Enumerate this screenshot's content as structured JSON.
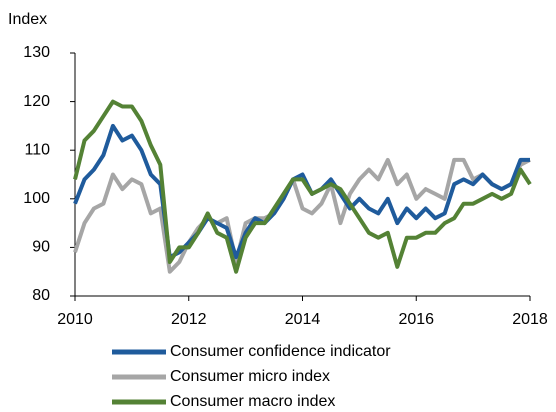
{
  "chart_data": {
    "type": "line",
    "y_label": "Index",
    "x": [
      2010,
      2010.167,
      2010.333,
      2010.5,
      2010.667,
      2010.833,
      2011,
      2011.167,
      2011.333,
      2011.5,
      2011.667,
      2011.833,
      2012,
      2012.167,
      2012.333,
      2012.5,
      2012.667,
      2012.833,
      2013,
      2013.167,
      2013.333,
      2013.5,
      2013.667,
      2013.833,
      2014,
      2014.167,
      2014.333,
      2014.5,
      2014.667,
      2014.833,
      2015,
      2015.167,
      2015.333,
      2015.5,
      2015.667,
      2015.833,
      2016,
      2016.167,
      2016.333,
      2016.5,
      2016.667,
      2016.833,
      2017,
      2017.167,
      2017.333,
      2017.5,
      2017.667,
      2017.833,
      2018
    ],
    "series": [
      {
        "name": "Consumer confidence indicator",
        "color": "#1f5b9c",
        "values": [
          99,
          104,
          106,
          109,
          115,
          112,
          113,
          110,
          105,
          103,
          88,
          89,
          91,
          93,
          96,
          95,
          94,
          88,
          93,
          96,
          95,
          97,
          100,
          104,
          105,
          101,
          102,
          104,
          101,
          98,
          100,
          98,
          97,
          100,
          95,
          98,
          96,
          98,
          96,
          97,
          103,
          104,
          103,
          105,
          103,
          102,
          103,
          108,
          108
        ]
      },
      {
        "name": "Consumer micro index",
        "color": "#a6a6a6",
        "values": [
          89,
          95,
          98,
          99,
          105,
          102,
          104,
          103,
          97,
          98,
          85,
          87,
          91,
          94,
          96,
          95,
          96,
          87,
          95,
          96,
          96,
          97,
          100,
          104,
          98,
          97,
          99,
          103,
          95,
          101,
          104,
          106,
          104,
          108,
          103,
          105,
          100,
          102,
          101,
          100,
          108,
          108,
          104,
          105,
          103,
          102,
          103,
          107,
          108
        ]
      },
      {
        "name": "Consumer macro index",
        "color": "#548235",
        "values": [
          104,
          112,
          114,
          117,
          120,
          119,
          119,
          116,
          111,
          107,
          87,
          90,
          90,
          93,
          97,
          93,
          92,
          85,
          92,
          95,
          95,
          98,
          101,
          104,
          104,
          101,
          102,
          103,
          102,
          99,
          96,
          93,
          92,
          93,
          86,
          92,
          92,
          93,
          93,
          95,
          96,
          99,
          99,
          100,
          101,
          100,
          101,
          106,
          103
        ]
      }
    ],
    "xlim": [
      2010,
      2018
    ],
    "xticks": [
      2010,
      2012,
      2014,
      2016,
      2018
    ],
    "ylim": [
      80,
      130
    ],
    "yticks": [
      80,
      90,
      100,
      110,
      120,
      130
    ],
    "grid": false
  }
}
